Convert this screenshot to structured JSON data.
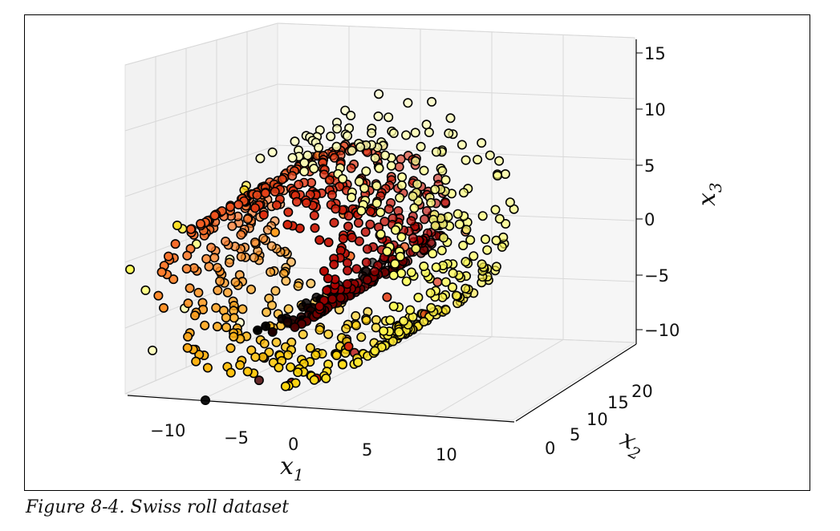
{
  "caption": "Figure 8-4. Swiss roll dataset",
  "chart_data": {
    "type": "scatter",
    "projection": "3d",
    "title": "",
    "xlabel": "x1",
    "ylabel": "x2",
    "zlabel": "x3",
    "x_ticks": [
      "−10",
      "−5",
      "0",
      "5",
      "10"
    ],
    "y_ticks": [
      "0",
      "5",
      "10",
      "15",
      "20"
    ],
    "z_ticks": [
      "15",
      "10",
      "5",
      "0",
      "−5",
      "−10"
    ],
    "xlim": [
      -11,
      14
    ],
    "ylim": [
      0,
      22
    ],
    "zlim": [
      -12,
      15
    ],
    "grid": true,
    "colormap": "hot",
    "colormap_stops": [
      "#000000",
      "#b00000",
      "#e03010",
      "#ff8030",
      "#ffd000",
      "#ffff60",
      "#ffffc8"
    ],
    "marker_edge_color": "#000000",
    "pane_color": "#f2f2f2",
    "grid_color": "#d8d8d8",
    "points_note": "Swiss roll manifold, color by position t along the spiral",
    "points": [
      [
        -4.6,
        3.2,
        -11.4,
        0.0
      ],
      [
        -5.1,
        14.5,
        -11.2,
        0.04
      ],
      [
        -3.0,
        8.1,
        -11.0,
        0.07
      ],
      [
        -1.5,
        19.0,
        -10.6,
        0.1
      ],
      [
        0.1,
        5.5,
        -10.1,
        0.13
      ],
      [
        1.6,
        12.2,
        -9.4,
        0.17
      ],
      [
        2.9,
        2.4,
        -8.5,
        0.2
      ],
      [
        4.0,
        17.8,
        -7.5,
        0.23
      ],
      [
        4.9,
        9.0,
        -6.3,
        0.26
      ],
      [
        5.5,
        1.0,
        -5.0,
        0.3
      ],
      [
        5.9,
        15.0,
        -3.6,
        0.33
      ],
      [
        6.0,
        6.2,
        -2.2,
        0.36
      ],
      [
        5.8,
        20.0,
        -0.7,
        0.39
      ],
      [
        5.3,
        11.0,
        0.7,
        0.43
      ],
      [
        4.5,
        3.9,
        2.0,
        0.46
      ],
      [
        3.5,
        17.2,
        3.2,
        0.49
      ],
      [
        2.3,
        8.5,
        4.1,
        0.52
      ],
      [
        0.9,
        0.6,
        4.8,
        0.56
      ],
      [
        -0.6,
        13.8,
        5.3,
        0.59
      ],
      [
        -2.0,
        5.0,
        5.5,
        0.62
      ],
      [
        -3.5,
        19.5,
        5.4,
        0.65
      ],
      [
        -4.8,
        10.3,
        5.0,
        0.69
      ],
      [
        -6.0,
        2.1,
        4.3,
        0.72
      ],
      [
        -7.0,
        16.4,
        3.3,
        0.75
      ],
      [
        -7.8,
        7.7,
        2.1,
        0.78
      ],
      [
        -8.4,
        0.4,
        0.7,
        0.82
      ],
      [
        -8.8,
        12.7,
        -0.9,
        0.85
      ],
      [
        -9.0,
        4.6,
        -2.5,
        0.88
      ],
      [
        -8.9,
        18.6,
        -4.1,
        0.91
      ],
      [
        -8.5,
        9.9,
        -5.7,
        0.95
      ],
      [
        -7.9,
        2.9,
        -7.2,
        0.98
      ],
      [
        -7.1,
        15.6,
        -8.6,
        0.99
      ]
    ]
  }
}
